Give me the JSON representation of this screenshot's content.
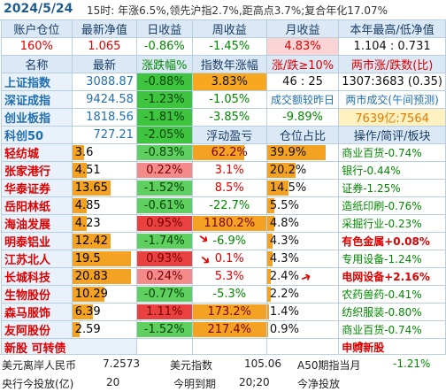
{
  "header": {
    "date": "2024/5/24",
    "summary": "15时: 年涨6.5%,领先沪指2.7%,距高点3.7%;复合年化17.07%"
  },
  "account": {
    "headers": [
      "账户仓位",
      "最新净值",
      "日收益",
      "周收益",
      "月收益",
      "本年最高/低净值"
    ],
    "values": [
      "160%",
      "1.065",
      "-0.86%",
      "-1.45%",
      "4.83%",
      "1.104 : 0.731"
    ]
  },
  "index_header": [
    "名称",
    "最新",
    "涨跌幅%",
    "指数年涨幅",
    "涨/跌≥10%",
    "两市涨/跌数(比)"
  ],
  "indices": [
    {
      "name": "上证指数",
      "price": "3088.87",
      "chg": "-0.88%",
      "c4": "3.83%",
      "c5": "46 : 25",
      "c6": "1307:3683 (0.35)"
    },
    {
      "name": "深证成指",
      "price": "9424.58",
      "chg": "-1.23%",
      "c4": "-1.05%",
      "c5": "成交额较昨日",
      "c6": "两市成交(午间预测)"
    },
    {
      "name": "创业板指",
      "price": "1818.56",
      "chg": "-1.81%",
      "c4": "-3.85%",
      "c5": "-9.89%",
      "c6": "7639亿:7564"
    },
    {
      "name": "科创50",
      "price": "727.21",
      "chg": "-2.05%",
      "c4": "浮动盈亏",
      "c5": "仓位占比",
      "c6": "操作/简评/板块"
    }
  ],
  "stocks": [
    {
      "name": "轻纺城",
      "price": "3.6",
      "chg": "-0.83%",
      "pnl": "62.2%",
      "pct": "39.9%",
      "note": "商业百货-0.74%"
    },
    {
      "name": "张家港行",
      "price": "4.51",
      "chg": "0.22%",
      "pnl": "3.1%",
      "pct": "20.2%",
      "note": "银行-0.44%"
    },
    {
      "name": "华泰证券",
      "price": "13.65",
      "chg": "-1.52%",
      "pnl": "8.5%",
      "pct": "14.5%",
      "note": "证券-1.25%"
    },
    {
      "name": "岳阳林纸",
      "price": "4.85",
      "chg": "-0.61%",
      "pnl": "-22.7%",
      "pct": "5.5%",
      "note": "造纸印刷-0.76%"
    },
    {
      "name": "海油发展",
      "price": "4.23",
      "chg": "0.95%",
      "pnl": "1180.2%",
      "pct": "4.8%",
      "note": "采掘行业-0.23%"
    },
    {
      "name": "明泰铝业",
      "price": "12.42",
      "chg": "-1.74%",
      "pnl": "-6.9%",
      "pct": "4.3%",
      "note": "有色金属+0.08%"
    },
    {
      "name": "江苏北人",
      "price": "19.5",
      "chg": "0.93%",
      "pnl": "0.1%",
      "pct": "4.3%",
      "note": "专用设备-1.24%"
    },
    {
      "name": "长城科技",
      "price": "20.83",
      "chg": "0.24%",
      "pnl": "5.3%",
      "pct": "2.4%",
      "note": "电网设备+2.16%"
    },
    {
      "name": "生物股份",
      "price": "10.29",
      "chg": "-0.77%",
      "pnl": "-5.3%",
      "pct": "2.2%",
      "note": "农药兽药-0.41%"
    },
    {
      "name": "森马服饰",
      "price": "6.39",
      "chg": "1.11%",
      "pnl": "173.2%",
      "pct": "1.4%",
      "note": "纺织服装-0.80%"
    },
    {
      "name": "友阿股份",
      "price": "2.59",
      "chg": "-1.52%",
      "pnl": "217.4%",
      "pct": "0.9%",
      "note": "商业百货-0.74%"
    }
  ],
  "newstock": {
    "label": "新股 可转债",
    "note": "申购新股"
  },
  "footer": {
    "r1": {
      "a": "美元离岸人民币",
      "b": "7.2573",
      "c": "美元指数",
      "d": "105.06",
      "e": "A50期指当月",
      "f": "-1.21%"
    },
    "r2": {
      "a": "央行今投放(亿)",
      "b": "20",
      "c": "今明到期",
      "d": "20;20",
      "e": "今净投放",
      "f": ""
    }
  },
  "colors": {
    "red": "#e00000",
    "green": "#008a00",
    "blue": "#1f6fb2",
    "bar_red": "#f04a4a",
    "bar_green": "#5fcf5f",
    "bar_orange": "#f4a223"
  }
}
